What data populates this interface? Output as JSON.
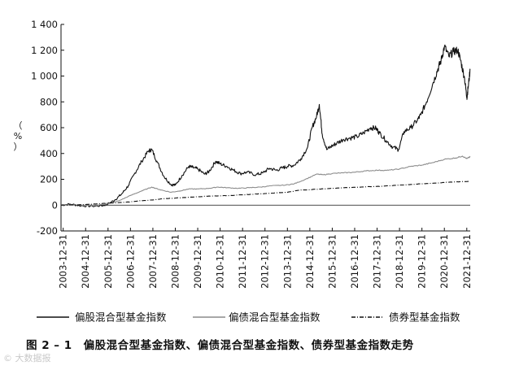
{
  "chart_data": {
    "type": "line",
    "ylabel": "（%）",
    "ylim": [
      -200,
      1400
    ],
    "yticks": [
      "-200",
      "0",
      "200",
      "400",
      "600",
      "800",
      "1 000",
      "1 200",
      "1 400"
    ],
    "ytick_values": [
      -200,
      0,
      200,
      400,
      600,
      800,
      1000,
      1200,
      1400
    ],
    "x_start": 2003.9,
    "x_end": 2022.15,
    "xticks": [
      "2003-12-31",
      "2004-12-31",
      "2005-12-31",
      "2006-12-31",
      "2007-12-31",
      "2008-12-31",
      "2009-12-31",
      "2010-12-31",
      "2011-12-31",
      "2012-12-31",
      "2013-12-31",
      "2014-12-31",
      "2015-12-31",
      "2016-12-31",
      "2017-12-31",
      "2018-12-31",
      "2019-12-31",
      "2020-12-31",
      "2021-12-31"
    ],
    "series": [
      {
        "name": "偏股混合型基金指数",
        "color": "#111111",
        "style": "solid",
        "points": [
          [
            2003.9,
            0
          ],
          [
            2004.3,
            8
          ],
          [
            2004.8,
            -5
          ],
          [
            2005.3,
            -8
          ],
          [
            2005.8,
            -3
          ],
          [
            2006.0,
            10
          ],
          [
            2006.3,
            40
          ],
          [
            2006.6,
            85
          ],
          [
            2006.9,
            150
          ],
          [
            2007.2,
            250
          ],
          [
            2007.5,
            340
          ],
          [
            2007.8,
            420
          ],
          [
            2007.95,
            430
          ],
          [
            2008.2,
            330
          ],
          [
            2008.5,
            220
          ],
          [
            2008.8,
            160
          ],
          [
            2009.0,
            155
          ],
          [
            2009.3,
            230
          ],
          [
            2009.6,
            300
          ],
          [
            2009.8,
            290
          ],
          [
            2010.0,
            280
          ],
          [
            2010.3,
            240
          ],
          [
            2010.5,
            260
          ],
          [
            2010.8,
            340
          ],
          [
            2011.0,
            320
          ],
          [
            2011.3,
            300
          ],
          [
            2011.6,
            270
          ],
          [
            2011.9,
            245
          ],
          [
            2012.2,
            255
          ],
          [
            2012.6,
            235
          ],
          [
            2012.9,
            250
          ],
          [
            2013.2,
            285
          ],
          [
            2013.5,
            270
          ],
          [
            2013.8,
            290
          ],
          [
            2014.0,
            300
          ],
          [
            2014.3,
            310
          ],
          [
            2014.6,
            360
          ],
          [
            2014.9,
            450
          ],
          [
            2015.1,
            600
          ],
          [
            2015.3,
            690
          ],
          [
            2015.42,
            780
          ],
          [
            2015.55,
            550
          ],
          [
            2015.75,
            430
          ],
          [
            2016.0,
            460
          ],
          [
            2016.2,
            480
          ],
          [
            2016.5,
            510
          ],
          [
            2016.8,
            520
          ],
          [
            2017.1,
            530
          ],
          [
            2017.4,
            560
          ],
          [
            2017.7,
            600
          ],
          [
            2017.95,
            595
          ],
          [
            2018.1,
            560
          ],
          [
            2018.4,
            500
          ],
          [
            2018.7,
            450
          ],
          [
            2018.95,
            430
          ],
          [
            2019.2,
            570
          ],
          [
            2019.5,
            600
          ],
          [
            2019.8,
            660
          ],
          [
            2019.95,
            700
          ],
          [
            2020.2,
            800
          ],
          [
            2020.5,
            950
          ],
          [
            2020.7,
            1050
          ],
          [
            2020.85,
            1120
          ],
          [
            2021.0,
            1230
          ],
          [
            2021.2,
            1150
          ],
          [
            2021.4,
            1190
          ],
          [
            2021.6,
            1200
          ],
          [
            2021.75,
            1100
          ],
          [
            2021.9,
            980
          ],
          [
            2022.0,
            830
          ],
          [
            2022.05,
            900
          ],
          [
            2022.15,
            1050
          ]
        ]
      },
      {
        "name": "偏债混合型基金指数",
        "color": "#8c8c8c",
        "style": "solid",
        "points": [
          [
            2003.9,
            0
          ],
          [
            2004.5,
            3
          ],
          [
            2005.0,
            -2
          ],
          [
            2005.5,
            0
          ],
          [
            2006.0,
            10
          ],
          [
            2006.5,
            35
          ],
          [
            2007.0,
            75
          ],
          [
            2007.5,
            110
          ],
          [
            2007.95,
            140
          ],
          [
            2008.3,
            120
          ],
          [
            2008.8,
            100
          ],
          [
            2009.2,
            110
          ],
          [
            2009.6,
            125
          ],
          [
            2010.0,
            125
          ],
          [
            2010.5,
            130
          ],
          [
            2010.9,
            140
          ],
          [
            2011.3,
            135
          ],
          [
            2011.8,
            130
          ],
          [
            2012.3,
            135
          ],
          [
            2012.8,
            140
          ],
          [
            2013.3,
            150
          ],
          [
            2013.9,
            155
          ],
          [
            2014.3,
            165
          ],
          [
            2014.8,
            200
          ],
          [
            2015.3,
            240
          ],
          [
            2015.6,
            235
          ],
          [
            2016.0,
            245
          ],
          [
            2016.5,
            250
          ],
          [
            2017.0,
            255
          ],
          [
            2017.5,
            265
          ],
          [
            2018.0,
            270
          ],
          [
            2018.5,
            270
          ],
          [
            2019.0,
            280
          ],
          [
            2019.5,
            300
          ],
          [
            2020.0,
            310
          ],
          [
            2020.5,
            330
          ],
          [
            2021.0,
            355
          ],
          [
            2021.5,
            365
          ],
          [
            2021.8,
            380
          ],
          [
            2022.0,
            360
          ],
          [
            2022.15,
            375
          ]
        ]
      },
      {
        "name": "债券型基金指数",
        "color": "#111111",
        "style": "dashdot",
        "points": [
          [
            2003.9,
            0
          ],
          [
            2004.5,
            2
          ],
          [
            2005.0,
            5
          ],
          [
            2005.5,
            10
          ],
          [
            2006.0,
            15
          ],
          [
            2006.5,
            20
          ],
          [
            2007.0,
            25
          ],
          [
            2007.5,
            35
          ],
          [
            2008.0,
            40
          ],
          [
            2008.5,
            50
          ],
          [
            2009.0,
            55
          ],
          [
            2009.5,
            60
          ],
          [
            2010.0,
            65
          ],
          [
            2010.5,
            70
          ],
          [
            2011.0,
            72
          ],
          [
            2011.5,
            75
          ],
          [
            2012.0,
            80
          ],
          [
            2012.5,
            85
          ],
          [
            2013.0,
            90
          ],
          [
            2013.5,
            95
          ],
          [
            2014.0,
            100
          ],
          [
            2014.5,
            115
          ],
          [
            2015.0,
            120
          ],
          [
            2015.5,
            125
          ],
          [
            2016.0,
            130
          ],
          [
            2016.5,
            135
          ],
          [
            2017.0,
            138
          ],
          [
            2017.5,
            142
          ],
          [
            2018.0,
            145
          ],
          [
            2018.5,
            150
          ],
          [
            2019.0,
            155
          ],
          [
            2019.5,
            160
          ],
          [
            2020.0,
            165
          ],
          [
            2020.5,
            170
          ],
          [
            2021.0,
            175
          ],
          [
            2021.5,
            180
          ],
          [
            2022.15,
            185
          ]
        ]
      }
    ]
  },
  "caption": {
    "label": "图 2 – 1",
    "text": "偏股混合型基金指数、偏债混合型基金指数、债券型基金指数走势"
  },
  "watermark": "© 大数据报"
}
